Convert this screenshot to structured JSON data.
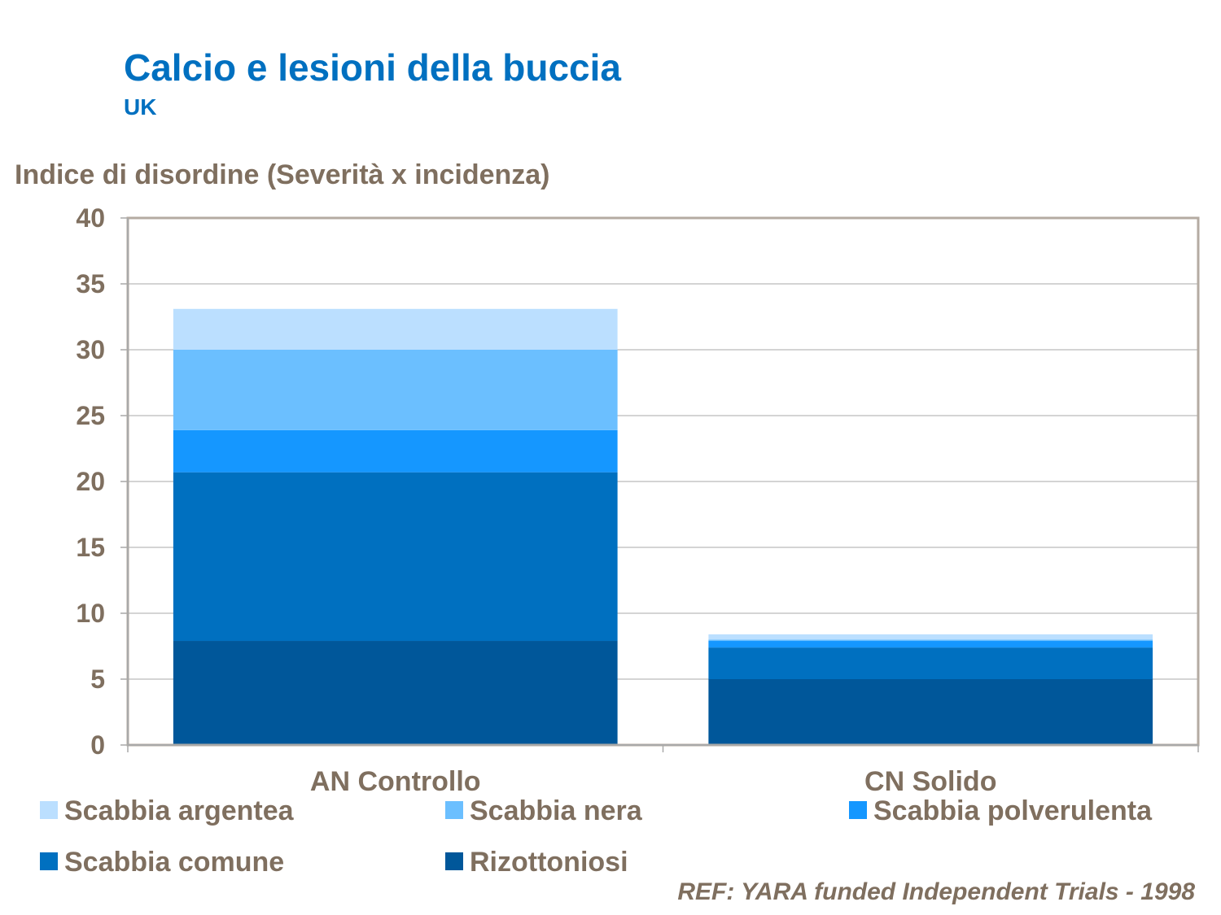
{
  "header": {
    "title": "Calcio e lesioni della buccia",
    "subtitle": "UK"
  },
  "footer": {
    "reference": "REF: YARA funded Independent Trials - 1998"
  },
  "chart_data": {
    "type": "bar",
    "stacked": true,
    "ylabel": "Indice di disordine (Severità x incidenza)",
    "xlabel": "",
    "ylim": [
      0,
      40
    ],
    "yticks": [
      0,
      5,
      10,
      15,
      20,
      25,
      30,
      35,
      40
    ],
    "grid": true,
    "legend_position": "bottom",
    "categories": [
      "AN Controllo",
      "CN Solido"
    ],
    "series": [
      {
        "name": "Rizottoniosi",
        "color": "#00579a",
        "values": [
          7.9,
          5.0
        ]
      },
      {
        "name": "Scabbia comune",
        "color": "#0070c0",
        "values": [
          12.8,
          2.4
        ]
      },
      {
        "name": "Scabbia polverulenta",
        "color": "#1597ff",
        "values": [
          3.2,
          0.5
        ]
      },
      {
        "name": "Scabbia nera",
        "color": "#6bbfff",
        "values": [
          6.1,
          0.1
        ]
      },
      {
        "name": "Scabbia argentea",
        "color": "#bbdfff",
        "values": [
          3.1,
          0.4
        ]
      }
    ],
    "legend_order": [
      "Scabbia argentea",
      "Scabbia nera",
      "Scabbia polverulenta",
      "Scabbia comune",
      "Rizottoniosi"
    ]
  }
}
